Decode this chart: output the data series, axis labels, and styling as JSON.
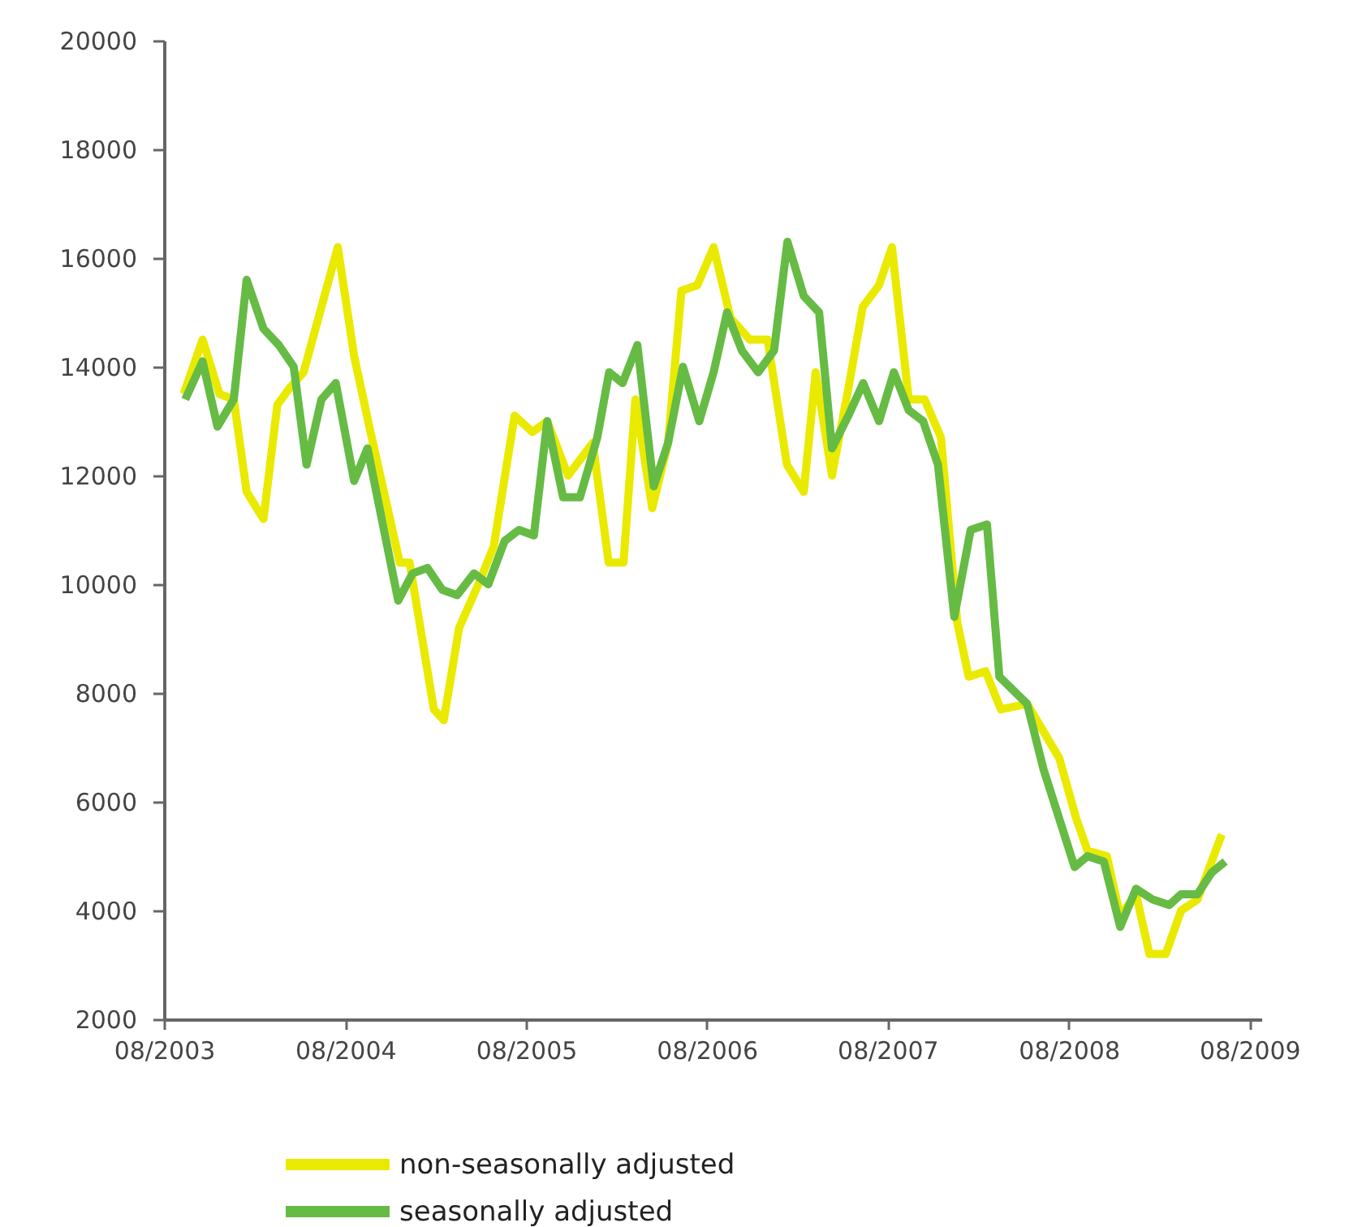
{
  "chart_data": {
    "type": "line",
    "xlim": [
      "2003-08",
      "2009-08-25"
    ],
    "xticks": [
      {
        "value": "2003-08",
        "label": "08/2003"
      },
      {
        "value": "2004-08",
        "label": "08/2004"
      },
      {
        "value": "2005-08",
        "label": "08/2005"
      },
      {
        "value": "2006-08",
        "label": "08/2006"
      },
      {
        "value": "2007-08",
        "label": "08/2007"
      },
      {
        "value": "2008-08",
        "label": "08/2008"
      },
      {
        "value": "2009-08",
        "label": "08/2009"
      }
    ],
    "ylim": [
      2000,
      20000
    ],
    "yticks": [
      2000,
      4000,
      6000,
      8000,
      10000,
      12000,
      14000,
      16000,
      18000,
      20000
    ],
    "grid": false,
    "legend": "bottom",
    "marker": "none",
    "line_style": "solid",
    "series": [
      {
        "name": "non-seasonally adjusted",
        "color": "#eaea00",
        "x": [
          "2003-09-10",
          "2003-10-18",
          "2003-11-21",
          "2003-12-20",
          "2004-01-15",
          "2004-02-18",
          "2004-03-17",
          "2004-04-10",
          "2004-05-09",
          "2004-06-05",
          "2004-07-17",
          "2004-08-19",
          "2004-09-21",
          "2004-10-28",
          "2004-11-19",
          "2004-12-09",
          "2005-01-27",
          "2005-02-16",
          "2005-03-19",
          "2005-04-27",
          "2005-05-28",
          "2005-07-09",
          "2005-08-14",
          "2005-09-13",
          "2005-10-25",
          "2005-12-14",
          "2006-01-15",
          "2006-02-14",
          "2006-03-10",
          "2006-04-13",
          "2006-05-15",
          "2006-06-11",
          "2006-07-13",
          "2006-08-15",
          "2006-09-18",
          "2006-10-27",
          "2006-12-02",
          "2007-01-10",
          "2007-02-13",
          "2007-03-09",
          "2007-04-11",
          "2007-05-14",
          "2007-06-12",
          "2007-07-15",
          "2007-08-10",
          "2007-09-13",
          "2007-10-15",
          "2007-11-17",
          "2007-12-20",
          "2008-01-12",
          "2008-02-15",
          "2008-03-17",
          "2008-05-09",
          "2008-07-13",
          "2008-08-16",
          "2008-09-08",
          "2008-10-17",
          "2008-11-13",
          "2008-12-15",
          "2009-01-11",
          "2009-02-13",
          "2009-03-16",
          "2009-04-18",
          "2009-06-06"
        ],
        "values": [
          13500,
          14500,
          13500,
          13400,
          11700,
          11200,
          13300,
          13600,
          13900,
          14800,
          16200,
          14200,
          12800,
          11300,
          10400,
          10400,
          7700,
          7500,
          9200,
          10000,
          10700,
          13100,
          12800,
          13000,
          12000,
          12600,
          10400,
          10400,
          13400,
          11400,
          12600,
          15400,
          15500,
          16200,
          14900,
          14500,
          14500,
          12200,
          11700,
          13900,
          12000,
          13600,
          15100,
          15500,
          16200,
          13400,
          13400,
          12700,
          9300,
          8300,
          8400,
          7700,
          7800,
          6800,
          5700,
          5100,
          5000,
          3900,
          4300,
          3200,
          3200,
          4000,
          4200,
          5400
        ]
      },
      {
        "name": "seasonally adjusted",
        "color": "#66bb44",
        "x": [
          "2003-09-13",
          "2003-10-18",
          "2003-11-17",
          "2003-12-20",
          "2004-01-15",
          "2004-02-18",
          "2004-03-20",
          "2004-04-19",
          "2004-05-15",
          "2004-06-14",
          "2004-07-13",
          "2004-08-19",
          "2004-09-15",
          "2004-11-16",
          "2004-12-15",
          "2005-01-14",
          "2005-02-13",
          "2005-03-15",
          "2005-04-18",
          "2005-05-17",
          "2005-06-19",
          "2005-07-18",
          "2005-08-17",
          "2005-09-13",
          "2005-10-15",
          "2005-11-18",
          "2005-12-23",
          "2006-01-16",
          "2006-02-12",
          "2006-03-14",
          "2006-04-16",
          "2006-05-15",
          "2006-06-14",
          "2006-07-17",
          "2006-08-15",
          "2006-09-11",
          "2006-10-11",
          "2006-11-13",
          "2006-12-15",
          "2007-01-11",
          "2007-02-13",
          "2007-03-16",
          "2007-04-11",
          "2007-05-14",
          "2007-06-13",
          "2007-07-15",
          "2007-08-14",
          "2007-09-13",
          "2007-10-12",
          "2007-11-11",
          "2007-12-14",
          "2008-01-16",
          "2008-02-18",
          "2008-03-14",
          "2008-05-09",
          "2008-06-11",
          "2008-08-13",
          "2008-09-08",
          "2008-10-11",
          "2008-11-13",
          "2008-12-15",
          "2009-01-18",
          "2009-02-20",
          "2009-03-16",
          "2009-04-18",
          "2009-05-17",
          "2009-06-13"
        ],
        "values": [
          13400,
          14100,
          12900,
          13400,
          15600,
          14700,
          14400,
          14000,
          12200,
          13400,
          13700,
          11900,
          12500,
          9700,
          10200,
          10300,
          9900,
          9800,
          10200,
          10000,
          10800,
          11000,
          10900,
          13000,
          11600,
          11600,
          12700,
          13900,
          13700,
          14400,
          11800,
          12600,
          14000,
          13000,
          13900,
          15000,
          14300,
          13900,
          14300,
          16300,
          15300,
          15000,
          12500,
          13100,
          13700,
          13000,
          13900,
          13200,
          13000,
          12200,
          9400,
          11000,
          11100,
          8300,
          7800,
          6600,
          4800,
          5000,
          4900,
          3700,
          4400,
          4200,
          4100,
          4300,
          4300,
          4700,
          4900
        ]
      }
    ]
  }
}
